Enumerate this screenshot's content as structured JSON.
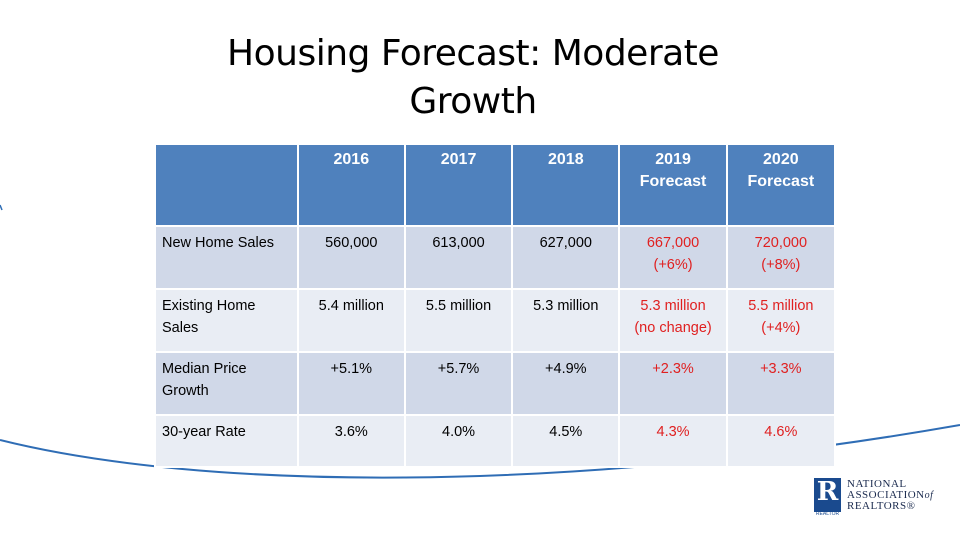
{
  "slide": {
    "title_line1": "Housing Forecast: Moderate",
    "title_line2": "Growth"
  },
  "table": {
    "headers": [
      "",
      "2016",
      "2017",
      "2018",
      "2019\nForecast",
      "2020\nForecast"
    ],
    "header_lines": {
      "h2019_a": "2019",
      "h2019_b": "Forecast",
      "h2020_a": "2020",
      "h2020_b": "Forecast"
    },
    "rows": [
      {
        "label": "New Home Sales",
        "v2016": "560,000",
        "v2017": "613,000",
        "v2018": "627,000",
        "v2019": "667,000",
        "v2019_note": "(+6%)",
        "v2020": "720,000",
        "v2020_note": "(+8%)"
      },
      {
        "label": "Existing Home Sales",
        "v2016": "5.4 million",
        "v2017": "5.5 million",
        "v2018": "5.3 million",
        "v2019": "5.3 million",
        "v2019_note": "(no change)",
        "v2020": "5.5 million",
        "v2020_note": "(+4%)"
      },
      {
        "label": "Median Price Growth",
        "v2016": "+5.1%",
        "v2017": "+5.7%",
        "v2018": "+4.9%",
        "v2019": "+2.3%",
        "v2019_note": "",
        "v2020": "+3.3%",
        "v2020_note": ""
      },
      {
        "label": "30-year Rate",
        "v2016": "3.6%",
        "v2017": "4.0%",
        "v2018": "4.5%",
        "v2019": "4.3%",
        "v2019_note": "",
        "v2020": "4.6%",
        "v2020_note": ""
      }
    ]
  },
  "logo": {
    "mark": "R",
    "mark_sub": "REALTOR",
    "line1": "NATIONAL",
    "line2a": "ASSOCIATION",
    "line2b": "of",
    "line3": "REALTORS®"
  },
  "colors": {
    "header_bg": "#4f81bd",
    "row_odd": "#d0d8e8",
    "row_even": "#e9edf4",
    "forecast_text": "#e02020",
    "curve": "#2f6db5"
  }
}
